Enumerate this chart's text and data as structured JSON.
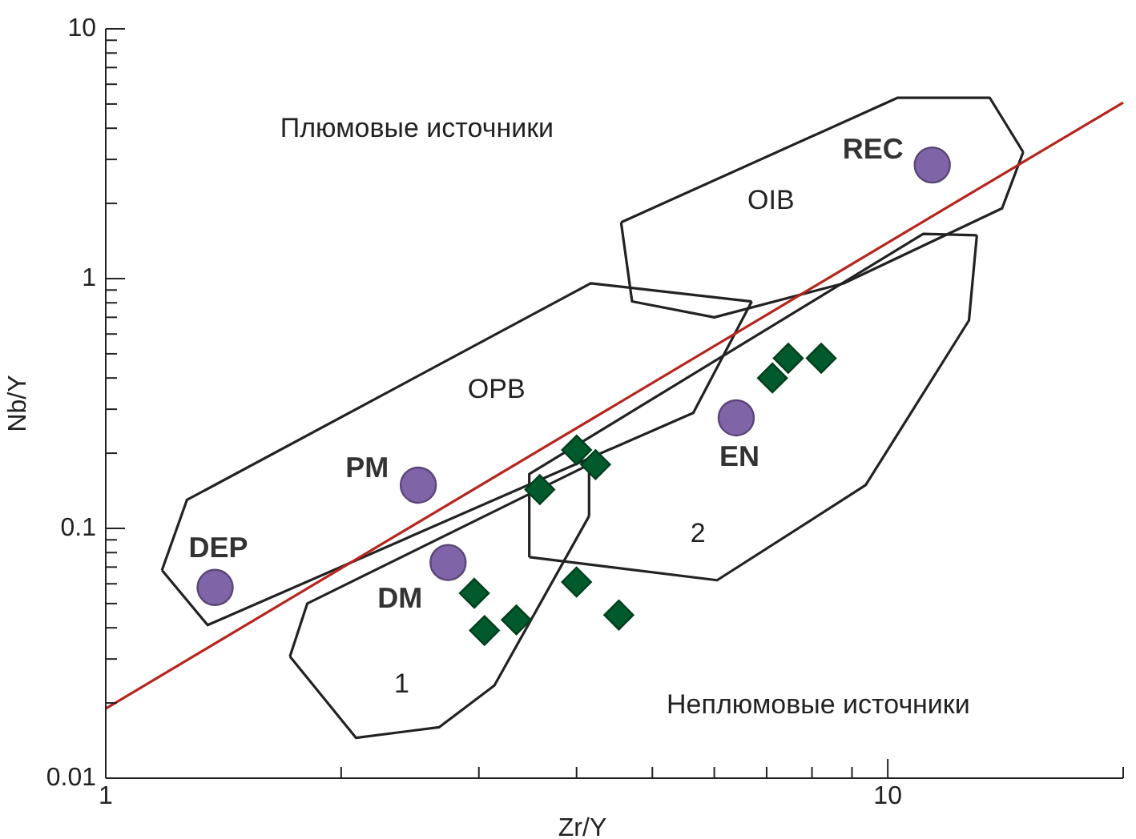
{
  "chart_data": {
    "type": "scatter",
    "xlabel": "Zr/Y",
    "ylabel": "Nb/Y",
    "log": "xy",
    "grid": false,
    "xlim": [
      1,
      20
    ],
    "xticks": [
      1,
      {
        "value": 2,
        "label": null
      },
      {
        "value": 3,
        "label": null
      },
      {
        "value": 4,
        "label": null
      },
      {
        "value": 5,
        "label": null
      },
      {
        "value": 6,
        "label": null
      },
      {
        "value": 7,
        "label": null
      },
      {
        "value": 8,
        "label": null
      },
      {
        "value": 9,
        "label": null
      },
      10,
      {
        "value": 20,
        "label": null
      }
    ],
    "ylim": [
      0.01,
      10
    ],
    "yticks": [
      0.01,
      {
        "value": 0.02,
        "label": null
      },
      {
        "value": 0.03,
        "label": null
      },
      {
        "value": 0.04,
        "label": null
      },
      {
        "value": 0.05,
        "label": null
      },
      {
        "value": 0.06,
        "label": null
      },
      {
        "value": 0.07,
        "label": null
      },
      {
        "value": 0.08,
        "label": null
      },
      {
        "value": 0.09,
        "label": null
      },
      0.1,
      {
        "value": 0.2,
        "label": null
      },
      {
        "value": 0.3,
        "label": null
      },
      {
        "value": 0.4,
        "label": null
      },
      {
        "value": 0.5,
        "label": null
      },
      {
        "value": 0.6,
        "label": null
      },
      {
        "value": 0.7,
        "label": null
      },
      {
        "value": 0.8,
        "label": null
      },
      {
        "value": 0.9,
        "label": null
      },
      1,
      {
        "value": 2,
        "label": null
      },
      {
        "value": 3,
        "label": null
      },
      {
        "value": 4,
        "label": null
      },
      {
        "value": 5,
        "label": null
      },
      {
        "value": 6,
        "label": null
      },
      {
        "value": 7,
        "label": null
      },
      {
        "value": 8,
        "label": null
      },
      {
        "value": 9,
        "label": null
      },
      10
    ],
    "series": [
      {
        "type": "line",
        "color": "#222222",
        "x": [
          1.18,
          1.27,
          4.17,
          6.7
        ],
        "values": [
          0.068,
          0.13,
          0.957,
          0.81
        ]
      },
      {
        "type": "line",
        "color": "#222222",
        "x": [
          1.18,
          1.35,
          5.64,
          6.7
        ],
        "values": [
          0.068,
          0.041,
          0.29,
          0.81
        ]
      },
      {
        "type": "line",
        "color": "#222222",
        "x": [
          4.56,
          10.3,
          13.5,
          14.9
        ],
        "values": [
          1.68,
          5.3,
          5.3,
          3.21
        ]
      },
      {
        "type": "line",
        "color": "#222222",
        "x": [
          4.56,
          4.71,
          6.0,
          8.78,
          14.0,
          14.9
        ],
        "values": [
          1.68,
          0.81,
          0.7,
          0.957,
          1.91,
          3.21
        ]
      },
      {
        "type": "line",
        "color": "#222222",
        "x": [
          1.72,
          1.81,
          4.15,
          4.15
        ],
        "values": [
          0.0307,
          0.05,
          0.18,
          0.112
        ]
      },
      {
        "type": "line",
        "color": "#222222",
        "x": [
          1.72,
          2.09,
          2.67,
          3.14,
          4.15
        ],
        "values": [
          0.0307,
          0.0145,
          0.016,
          0.0235,
          0.112
        ]
      },
      {
        "type": "line",
        "color": "#222222",
        "x": [
          3.48,
          3.48,
          11.1,
          13.0
        ],
        "values": [
          0.0767,
          0.165,
          1.51,
          1.49
        ]
      },
      {
        "type": "line",
        "color": "#222222",
        "x": [
          3.48,
          6.05,
          9.37,
          12.7,
          13.0
        ],
        "values": [
          0.0767,
          0.062,
          0.149,
          0.68,
          1.49
        ]
      },
      {
        "type": "line",
        "color": "#b5261e",
        "x": [
          1,
          20
        ],
        "values": [
          0.019,
          5.07
        ]
      },
      {
        "color": "#005a2b",
        "marker": "diamond",
        "x": [
          2.96,
          3.05,
          3.35,
          3.59,
          4.0,
          4.23,
          4.0,
          4.53,
          7.12,
          7.46,
          8.22
        ],
        "values": [
          0.055,
          0.039,
          0.043,
          0.143,
          0.206,
          0.18,
          0.061,
          0.045,
          0.4,
          0.48,
          0.48
        ]
      },
      {
        "name": "DEP",
        "color": "#8064a8",
        "marker": "circle",
        "x": [
          1.38
        ],
        "values": [
          0.058
        ]
      },
      {
        "name": "PM",
        "color": "#8064a8",
        "marker": "circle",
        "x": [
          2.51
        ],
        "values": [
          0.149
        ]
      },
      {
        "name": "DM",
        "color": "#8064a8",
        "marker": "circle",
        "x": [
          2.74
        ],
        "values": [
          0.073
        ]
      },
      {
        "name": "EN",
        "color": "#8064a8",
        "marker": "circle",
        "x": [
          6.4
        ],
        "values": [
          0.277
        ]
      },
      {
        "name": "REC",
        "color": "#8064a8",
        "marker": "circle",
        "x": [
          11.4
        ],
        "values": [
          2.85
        ]
      }
    ],
    "annotations": [
      "Плюмовые источники",
      "Неплюмовые источники",
      "OIB",
      "OPB",
      "1",
      "2"
    ]
  }
}
